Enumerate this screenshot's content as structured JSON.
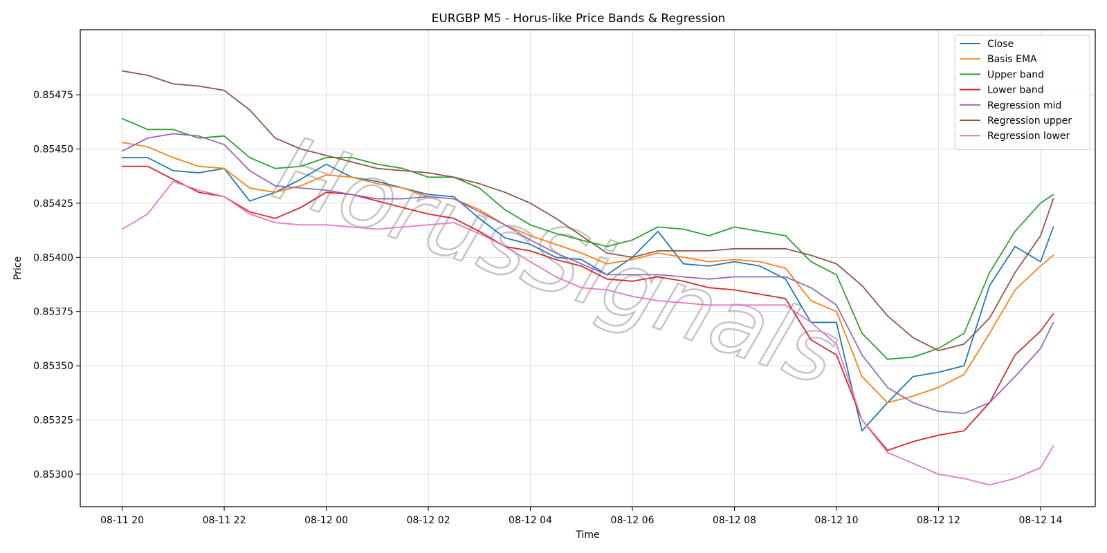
{
  "chart_data": {
    "type": "line",
    "title": "EURGBP M5 - Horus-like Price Bands & Regression",
    "xlabel": "Time",
    "ylabel": "Price",
    "ylim": [
      0.85285,
      0.85505
    ],
    "grid": true,
    "legend_position": "top-right",
    "watermark": "HorusSignals",
    "x": [
      "08-11 20:00",
      "08-11 20:30",
      "08-11 21:00",
      "08-11 21:30",
      "08-11 22:00",
      "08-11 22:30",
      "08-11 23:00",
      "08-11 23:30",
      "08-12 00:00",
      "08-12 00:30",
      "08-12 01:00",
      "08-12 01:30",
      "08-12 02:00",
      "08-12 02:30",
      "08-12 03:00",
      "08-12 03:30",
      "08-12 04:00",
      "08-12 04:30",
      "08-12 05:00",
      "08-12 05:30",
      "08-12 06:00",
      "08-12 06:30",
      "08-12 07:00",
      "08-12 07:30",
      "08-12 08:00",
      "08-12 08:30",
      "08-12 09:00",
      "08-12 09:30",
      "08-12 10:00",
      "08-12 10:30",
      "08-12 11:00",
      "08-12 11:30",
      "08-12 12:00",
      "08-12 12:30",
      "08-12 13:00",
      "08-12 13:30",
      "08-12 14:00",
      "08-12 14:15"
    ],
    "x_ticks": [
      "08-11 20",
      "08-11 22",
      "08-12 00",
      "08-12 02",
      "08-12 04",
      "08-12 06",
      "08-12 08",
      "08-12 10",
      "08-12 12",
      "08-12 14"
    ],
    "y_ticks": [
      "0.85300",
      "0.85325",
      "0.85350",
      "0.85375",
      "0.85400",
      "0.85425",
      "0.85450",
      "0.85475"
    ],
    "series": [
      {
        "name": "Close",
        "color": "#1f77b4",
        "values": [
          0.85446,
          0.85446,
          0.8544,
          0.85439,
          0.85441,
          0.85426,
          0.8543,
          0.85436,
          0.85443,
          0.85437,
          0.85435,
          0.85432,
          0.85429,
          0.85428,
          0.85418,
          0.85409,
          0.85406,
          0.854,
          0.85399,
          0.85392,
          0.854,
          0.85412,
          0.85397,
          0.85396,
          0.85398,
          0.85396,
          0.8539,
          0.8537,
          0.8537,
          0.8532,
          0.85333,
          0.85345,
          0.85347,
          0.8535,
          0.85387,
          0.85405,
          0.85398,
          0.85414
        ]
      },
      {
        "name": "Basis EMA",
        "color": "#ff7f0e",
        "values": [
          0.85453,
          0.85451,
          0.85446,
          0.85442,
          0.85441,
          0.85432,
          0.8543,
          0.85433,
          0.85438,
          0.85437,
          0.85434,
          0.85432,
          0.85428,
          0.85427,
          0.85422,
          0.85415,
          0.8541,
          0.85406,
          0.85402,
          0.85397,
          0.85399,
          0.85402,
          0.854,
          0.85398,
          0.85399,
          0.85398,
          0.85395,
          0.8538,
          0.85375,
          0.85345,
          0.85333,
          0.85336,
          0.8534,
          0.85346,
          0.85365,
          0.85385,
          0.85396,
          0.85401
        ]
      },
      {
        "name": "Upper band",
        "color": "#2ca02c",
        "values": [
          0.85464,
          0.85459,
          0.85459,
          0.85455,
          0.85456,
          0.85446,
          0.85441,
          0.85442,
          0.85446,
          0.85446,
          0.85443,
          0.85441,
          0.85437,
          0.85437,
          0.85432,
          0.85422,
          0.85415,
          0.85411,
          0.85408,
          0.85405,
          0.85408,
          0.85414,
          0.85413,
          0.8541,
          0.85414,
          0.85412,
          0.8541,
          0.85398,
          0.85392,
          0.85365,
          0.85353,
          0.85354,
          0.85358,
          0.85365,
          0.85393,
          0.85412,
          0.85425,
          0.85429
        ]
      },
      {
        "name": "Lower band",
        "color": "#d62728",
        "values": [
          0.85442,
          0.85442,
          0.85436,
          0.8543,
          0.85428,
          0.85421,
          0.85418,
          0.85423,
          0.8543,
          0.85429,
          0.85426,
          0.85423,
          0.8542,
          0.85418,
          0.85412,
          0.85405,
          0.85403,
          0.85399,
          0.85396,
          0.8539,
          0.85389,
          0.85391,
          0.85389,
          0.85386,
          0.85385,
          0.85383,
          0.85381,
          0.85362,
          0.85355,
          0.85325,
          0.85311,
          0.85315,
          0.85318,
          0.8532,
          0.85333,
          0.85355,
          0.85366,
          0.85374
        ]
      },
      {
        "name": "Regression mid",
        "color": "#9467bd",
        "values": [
          0.85449,
          0.85455,
          0.85457,
          0.85456,
          0.85452,
          0.8544,
          0.85433,
          0.85432,
          0.85431,
          0.85429,
          0.85427,
          0.85427,
          0.85428,
          0.85427,
          0.85421,
          0.85415,
          0.85408,
          0.85402,
          0.85397,
          0.85392,
          0.85392,
          0.85392,
          0.85391,
          0.8539,
          0.85391,
          0.85391,
          0.85391,
          0.85386,
          0.85378,
          0.85355,
          0.8534,
          0.85333,
          0.85329,
          0.85328,
          0.85333,
          0.85345,
          0.85358,
          0.8537
        ]
      },
      {
        "name": "Regression upper",
        "color": "#8c564b",
        "values": [
          0.85486,
          0.85484,
          0.8548,
          0.85479,
          0.85477,
          0.85468,
          0.85455,
          0.8545,
          0.85447,
          0.85444,
          0.85441,
          0.8544,
          0.85439,
          0.85437,
          0.85434,
          0.8543,
          0.85425,
          0.85418,
          0.8541,
          0.85402,
          0.854,
          0.85403,
          0.85403,
          0.85403,
          0.85404,
          0.85404,
          0.85404,
          0.85401,
          0.85397,
          0.85387,
          0.85373,
          0.85363,
          0.85357,
          0.8536,
          0.85372,
          0.85393,
          0.8541,
          0.85427
        ]
      },
      {
        "name": "Regression lower",
        "color": "#e377c2",
        "values": [
          0.85413,
          0.8542,
          0.85435,
          0.85431,
          0.85428,
          0.8542,
          0.85416,
          0.85415,
          0.85415,
          0.85414,
          0.85413,
          0.85414,
          0.85415,
          0.85416,
          0.85411,
          0.85405,
          0.85398,
          0.85391,
          0.85386,
          0.85385,
          0.85382,
          0.8538,
          0.85379,
          0.85378,
          0.85378,
          0.85378,
          0.85378,
          0.8537,
          0.8536,
          0.85325,
          0.8531,
          0.85305,
          0.853,
          0.85298,
          0.85295,
          0.85298,
          0.85303,
          0.85313
        ]
      }
    ]
  }
}
